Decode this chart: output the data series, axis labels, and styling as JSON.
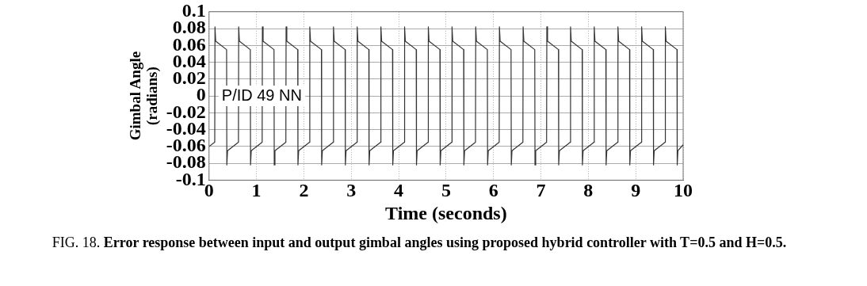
{
  "chart_data": {
    "type": "line",
    "xlabel": "Time (seconds)",
    "ylabel": "Gimbal Angle (radians)",
    "annotations": [
      "P/ID 49 NN",
      "FIG. 18. Error response between input and output gimbal angles using proposed hybrid controller with T=0.5 and H=0.5."
    ],
    "xlim": [
      0,
      10
    ],
    "xticks": [
      0,
      1,
      2,
      3,
      4,
      5,
      6,
      7,
      8,
      9,
      10
    ],
    "ylim": [
      -0.1,
      0.1
    ],
    "yticks": [
      -0.1,
      -0.08,
      -0.06,
      -0.04,
      -0.02,
      0,
      0.02,
      0.04,
      0.06,
      0.08,
      0.1
    ],
    "grid": true,
    "line_style": "solid",
    "series": [
      {
        "color": "#333333",
        "x": [
          0,
          0.12,
          0.125,
          0.14,
          0.37,
          0.375,
          0.39,
          0.62,
          0.625,
          0.64,
          0.87,
          0.875,
          0.89,
          1.12,
          1.125,
          1.14,
          1.37,
          1.375,
          1.39,
          1.62,
          1.625,
          1.64,
          1.87,
          1.875,
          1.89,
          2.12,
          2.125,
          2.14,
          2.37,
          2.375,
          2.39,
          2.62,
          2.625,
          2.64,
          2.87,
          2.875,
          2.89,
          3.12,
          3.125,
          3.14,
          3.37,
          3.375,
          3.39,
          3.62,
          3.625,
          3.64,
          3.87,
          3.875,
          3.89,
          4.12,
          4.125,
          4.14,
          4.37,
          4.375,
          4.39,
          4.62,
          4.625,
          4.64,
          4.87,
          4.875,
          4.89,
          5.12,
          5.125,
          5.14,
          5.37,
          5.375,
          5.39,
          5.62,
          5.625,
          5.64,
          5.87,
          5.875,
          5.89,
          6.12,
          6.125,
          6.14,
          6.37,
          6.375,
          6.39,
          6.62,
          6.625,
          6.64,
          6.87,
          6.875,
          6.89,
          7.12,
          7.125,
          7.14,
          7.37,
          7.375,
          7.39,
          7.62,
          7.625,
          7.64,
          7.87,
          7.875,
          7.89,
          8.12,
          8.125,
          8.14,
          8.37,
          8.375,
          8.39,
          8.62,
          8.625,
          8.64,
          8.87,
          8.875,
          8.89,
          9.12,
          9.125,
          9.14,
          9.37,
          9.375,
          9.39,
          9.62,
          9.625,
          9.64,
          9.87,
          9.875,
          9.89,
          10
        ],
        "values": [
          -0.06,
          -0.055,
          0.082,
          0.065,
          0.055,
          -0.082,
          -0.065,
          -0.055,
          0.082,
          0.065,
          0.055,
          -0.082,
          -0.065,
          -0.055,
          0.082,
          0.065,
          0.055,
          -0.082,
          -0.065,
          -0.055,
          0.082,
          0.065,
          0.055,
          -0.082,
          -0.065,
          -0.055,
          0.082,
          0.065,
          0.055,
          -0.082,
          -0.065,
          -0.055,
          0.082,
          0.065,
          0.055,
          -0.082,
          -0.065,
          -0.055,
          0.082,
          0.065,
          0.055,
          -0.082,
          -0.065,
          -0.055,
          0.082,
          0.065,
          0.055,
          -0.082,
          -0.065,
          -0.055,
          0.082,
          0.065,
          0.055,
          -0.082,
          -0.065,
          -0.055,
          0.082,
          0.065,
          0.055,
          -0.082,
          -0.065,
          -0.055,
          0.082,
          0.065,
          0.055,
          -0.082,
          -0.065,
          -0.055,
          0.082,
          0.065,
          0.055,
          -0.082,
          -0.065,
          -0.055,
          0.082,
          0.065,
          0.055,
          -0.082,
          -0.065,
          -0.055,
          0.082,
          0.065,
          0.055,
          -0.082,
          -0.065,
          -0.055,
          0.082,
          0.065,
          0.055,
          -0.082,
          -0.065,
          -0.055,
          0.082,
          0.065,
          0.055,
          -0.082,
          -0.065,
          -0.055,
          0.082,
          0.065,
          0.055,
          -0.082,
          -0.065,
          -0.055,
          0.082,
          0.065,
          0.055,
          -0.082,
          -0.065,
          -0.055,
          0.082,
          0.065,
          0.055,
          -0.082,
          -0.065,
          -0.055,
          0.082,
          0.065,
          0.055,
          -0.082,
          -0.065,
          -0.058
        ]
      }
    ]
  }
}
